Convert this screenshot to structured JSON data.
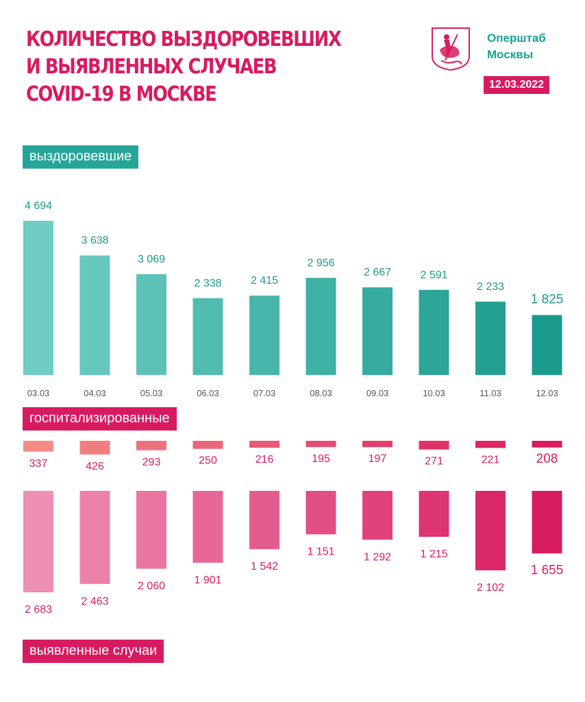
{
  "header": {
    "title_lines": [
      "КОЛИЧЕСТВО ВЫЗДОРОВЕВШИХ",
      "И ВЫЯВЛЕННЫХ СЛУЧАЕВ",
      "COVID-19 В МОСКВЕ"
    ],
    "org_lines": [
      "Оперштаб",
      "Москвы"
    ],
    "date": "12.03.2022",
    "emblem_icon": "moscow-coat-of-arms-icon"
  },
  "labels": {
    "recovered": "выздоровевшие",
    "hospitalized": "госпитализированные",
    "new_cases": "выявленные случаи"
  },
  "colors": {
    "title": "#d81b60",
    "org": "#16a394",
    "recovered_from": "#6fcdc4",
    "recovered_to": "#1a9a8c",
    "hospitalized_from": "#f48b86",
    "hospitalized_to": "#d81b60",
    "new_from": "#ee8fb4",
    "new_to": "#d81b60"
  },
  "chart_data": [
    {
      "type": "bar",
      "categories": [
        "03.03",
        "04.03",
        "05.03",
        "06.03",
        "07.03",
        "08.03",
        "09.03",
        "10.03",
        "11.03",
        "12.03"
      ],
      "series": [
        {
          "name": "выздоровевшие",
          "values": [
            4694,
            3638,
            3069,
            2338,
            2415,
            2956,
            2667,
            2591,
            2233,
            1825
          ]
        }
      ],
      "value_labels": [
        "4 694",
        "3 638",
        "3 069",
        "2 338",
        "2 415",
        "2 956",
        "2 667",
        "2 591",
        "2 233",
        "1 825"
      ]
    },
    {
      "type": "bar",
      "categories": [
        "03.03",
        "04.03",
        "05.03",
        "06.03",
        "07.03",
        "08.03",
        "09.03",
        "10.03",
        "11.03",
        "12.03"
      ],
      "series": [
        {
          "name": "госпитализированные",
          "values": [
            337,
            426,
            293,
            250,
            216,
            195,
            197,
            271,
            221,
            208
          ]
        }
      ],
      "value_labels": [
        "337",
        "426",
        "293",
        "250",
        "216",
        "195",
        "197",
        "271",
        "221",
        "208"
      ]
    },
    {
      "type": "bar",
      "categories": [
        "03.03",
        "04.03",
        "05.03",
        "06.03",
        "07.03",
        "08.03",
        "09.03",
        "10.03",
        "11.03",
        "12.03"
      ],
      "series": [
        {
          "name": "выявленные случаи",
          "values": [
            2683,
            2463,
            2060,
            1901,
            1542,
            1151,
            1292,
            1215,
            2102,
            1655
          ]
        }
      ],
      "value_labels": [
        "2 683",
        "2 463",
        "2 060",
        "1 901",
        "1 542",
        "1 151",
        "1 292",
        "1 215",
        "2 102",
        "1 655"
      ]
    }
  ]
}
